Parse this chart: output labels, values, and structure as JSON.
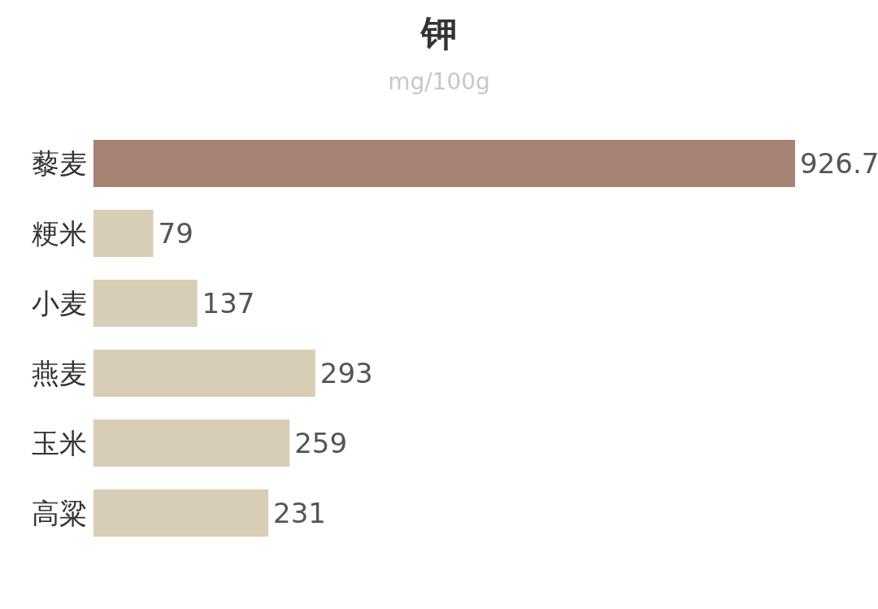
{
  "chart_data": {
    "type": "bar",
    "orientation": "horizontal",
    "title": "钾",
    "subtitle": "mg/100g",
    "categories": [
      "藜麦",
      "粳米",
      "小麦",
      "燕麦",
      "玉米",
      "高粱"
    ],
    "values": [
      926.7,
      79,
      137,
      293,
      259,
      231
    ],
    "colors": [
      "#a58272",
      "#d8cdb5",
      "#d8cdb5",
      "#d8cdb5",
      "#d8cdb5",
      "#d8cdb5"
    ],
    "data_labels": true,
    "grid": false,
    "legend": false
  }
}
